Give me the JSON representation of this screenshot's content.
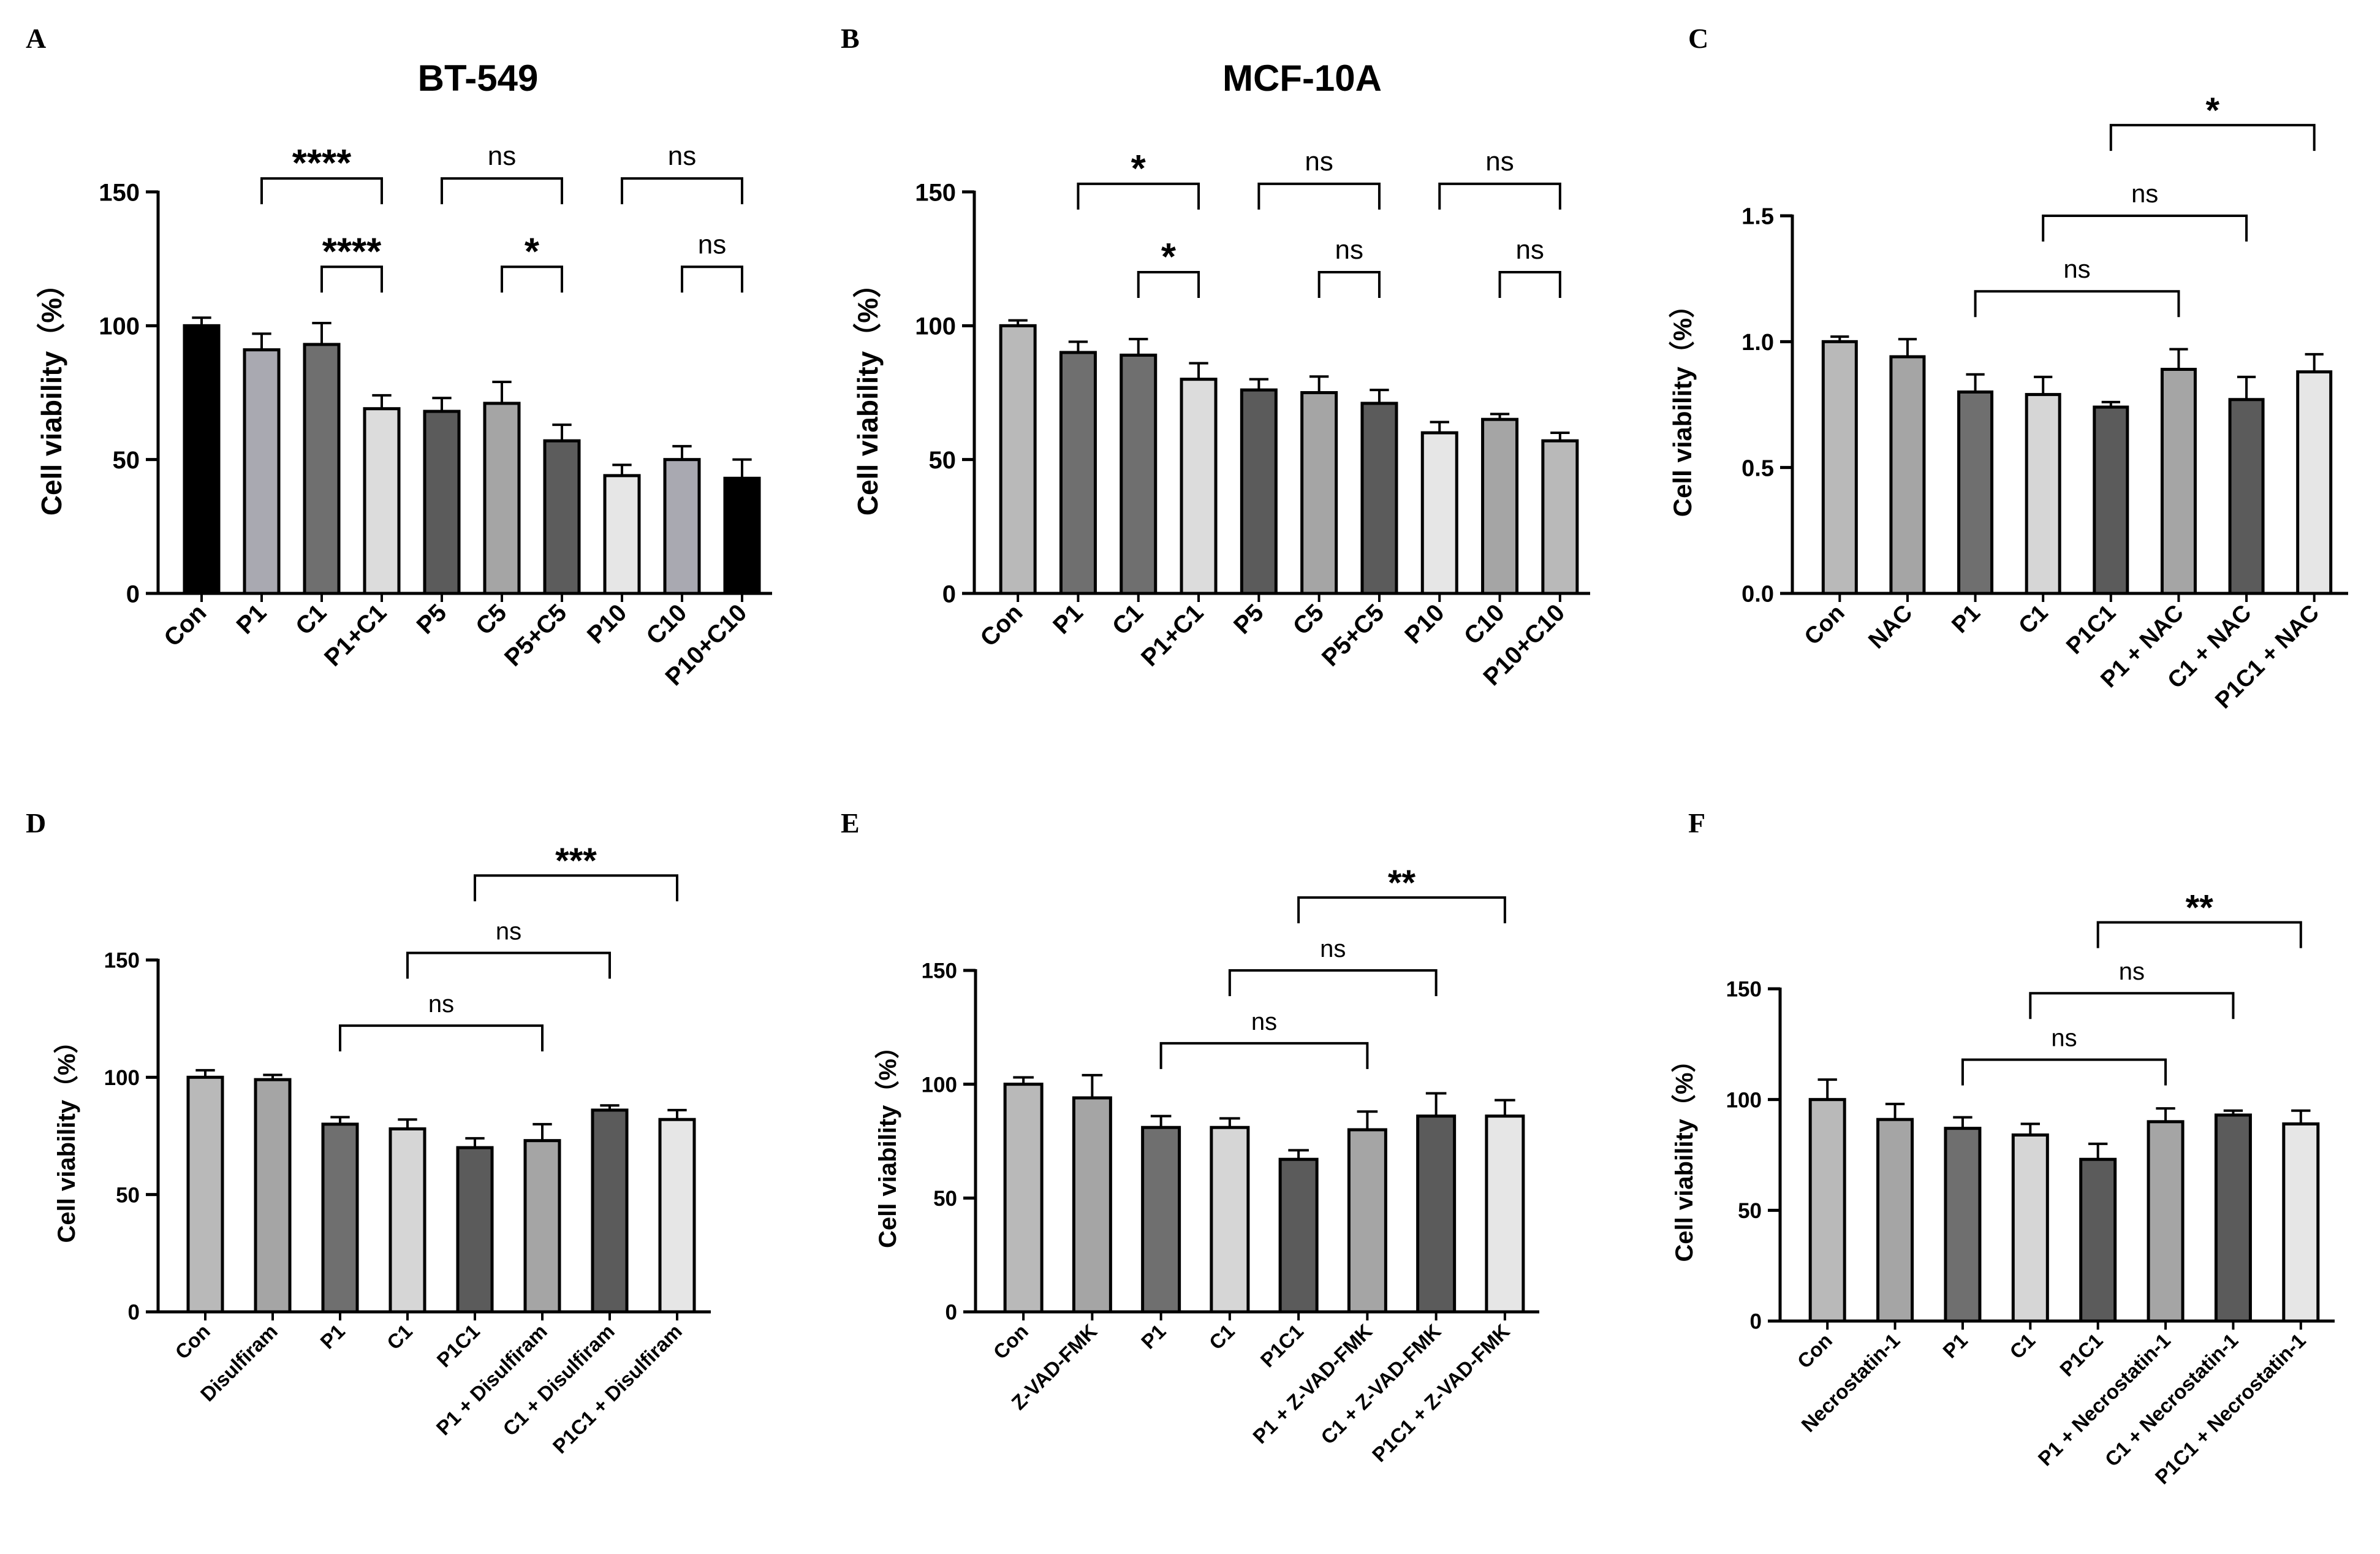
{
  "chart_data": [
    {
      "id": "A",
      "panel_letter": "A",
      "type": "bar",
      "title": "BT-549",
      "ylabel": "Cell viability（%）",
      "ylim": [
        0,
        150
      ],
      "yticks": [
        "0",
        "50",
        "100",
        "150"
      ],
      "categories": [
        "Con",
        "P1",
        "C1",
        "P1+C1",
        "P5",
        "C5",
        "P5+C5",
        "P10",
        "C10",
        "P10+C10"
      ],
      "values": [
        100,
        91,
        93,
        69,
        68,
        71,
        57,
        44,
        50,
        43
      ],
      "errors": [
        3,
        6,
        8,
        5,
        5,
        8,
        6,
        4,
        5,
        7
      ],
      "colors": [
        "#000000",
        "#a9a9b1",
        "#6f6f6f",
        "#dcdcdc",
        "#5b5b5b",
        "#a5a5a5",
        "#5c5c5c",
        "#e6e6e6",
        "#a9a9b1",
        "#000000"
      ],
      "comparisons": [
        {
          "from": 1,
          "to": 3,
          "label": "****",
          "level": 155
        },
        {
          "from": 2,
          "to": 3,
          "label": "****",
          "level": 122
        },
        {
          "from": 4,
          "to": 6,
          "label": "ns",
          "level": 155
        },
        {
          "from": 5,
          "to": 6,
          "label": "*",
          "level": 122
        },
        {
          "from": 7,
          "to": 9,
          "label": "ns",
          "level": 155
        },
        {
          "from": 8,
          "to": 9,
          "label": "ns",
          "level": 122
        }
      ]
    },
    {
      "id": "B",
      "panel_letter": "B",
      "type": "bar",
      "title": "MCF-10A",
      "ylabel": "Cell viability（%）",
      "ylim": [
        0,
        150
      ],
      "yticks": [
        "0",
        "50",
        "100",
        "150"
      ],
      "categories": [
        "Con",
        "P1",
        "C1",
        "P1+C1",
        "P5",
        "C5",
        "P5+C5",
        "P10",
        "C10",
        "P10+C10"
      ],
      "values": [
        100,
        90,
        89,
        80,
        76,
        75,
        71,
        60,
        65,
        57
      ],
      "errors": [
        2,
        4,
        6,
        6,
        4,
        6,
        5,
        4,
        2,
        3
      ],
      "colors": [
        "#b9b9b9",
        "#6f6f6f",
        "#6f6f6f",
        "#dcdcdc",
        "#5b5b5b",
        "#a5a5a5",
        "#5b5b5b",
        "#e6e6e6",
        "#a5a5a5",
        "#b9b9b9"
      ],
      "comparisons": [
        {
          "from": 1,
          "to": 3,
          "label": "*",
          "level": 153
        },
        {
          "from": 2,
          "to": 3,
          "label": "*",
          "level": 120
        },
        {
          "from": 4,
          "to": 6,
          "label": "ns",
          "level": 153
        },
        {
          "from": 5,
          "to": 6,
          "label": "ns",
          "level": 120
        },
        {
          "from": 7,
          "to": 9,
          "label": "ns",
          "level": 153
        },
        {
          "from": 8,
          "to": 9,
          "label": "ns",
          "level": 120
        }
      ]
    },
    {
      "id": "C",
      "panel_letter": "C",
      "type": "bar",
      "title": "",
      "ylabel": "Cell viability（%）",
      "ylim": [
        0,
        1.5
      ],
      "yticks": [
        "0.0",
        "0.5",
        "1.0",
        "1.5"
      ],
      "categories": [
        "Con",
        "NAC",
        "P1",
        "C1",
        "P1C1",
        "P1 + NAC",
        "C1 + NAC",
        "P1C1 + NAC"
      ],
      "values": [
        1.0,
        0.94,
        0.8,
        0.79,
        0.74,
        0.89,
        0.77,
        0.88
      ],
      "errors": [
        0.02,
        0.07,
        0.07,
        0.07,
        0.02,
        0.08,
        0.09,
        0.07
      ],
      "colors": [
        "#b9b9b9",
        "#a5a5a5",
        "#6f6f6f",
        "#d6d6d6",
        "#5b5b5b",
        "#a5a5a5",
        "#5b5b5b",
        "#e6e6e6"
      ],
      "comparisons": [
        {
          "from": 2,
          "to": 5,
          "label": "ns",
          "level": 1.2
        },
        {
          "from": 3,
          "to": 6,
          "label": "ns",
          "level": 1.5
        },
        {
          "from": 4,
          "to": 7,
          "label": "*",
          "level": 1.86
        }
      ]
    },
    {
      "id": "D",
      "panel_letter": "D",
      "type": "bar",
      "title": "",
      "ylabel": "Cell viability（%）",
      "ylim": [
        0,
        150
      ],
      "yticks": [
        "0",
        "50",
        "100",
        "150"
      ],
      "categories": [
        "Con",
        "Disulfiram",
        "P1",
        "C1",
        "P1C1",
        "P1 + Disulfiram",
        "C1 + Disulfiram",
        "P1C1 + Disulfiram"
      ],
      "values": [
        100,
        99,
        80,
        78,
        70,
        73,
        86,
        82
      ],
      "errors": [
        3,
        2,
        3,
        4,
        4,
        7,
        2,
        4
      ],
      "colors": [
        "#b9b9b9",
        "#a5a5a5",
        "#6f6f6f",
        "#d6d6d6",
        "#5b5b5b",
        "#a5a5a5",
        "#5b5b5b",
        "#e6e6e6"
      ],
      "comparisons": [
        {
          "from": 2,
          "to": 5,
          "label": "ns",
          "level": 122
        },
        {
          "from": 3,
          "to": 6,
          "label": "ns",
          "level": 153
        },
        {
          "from": 4,
          "to": 7,
          "label": "***",
          "level": 186
        }
      ]
    },
    {
      "id": "E",
      "panel_letter": "E",
      "type": "bar",
      "title": "",
      "ylabel": "Cell viability（%）",
      "ylim": [
        0,
        150
      ],
      "yticks": [
        "0",
        "50",
        "100",
        "150"
      ],
      "categories": [
        "Con",
        "Z-VAD-FMK",
        "P1",
        "C1",
        "P1C1",
        "P1 + Z-VAD-FMK",
        "C1 + Z-VAD-FMK",
        "P1C1 + Z-VAD-FMK"
      ],
      "values": [
        100,
        94,
        81,
        81,
        67,
        80,
        86,
        86
      ],
      "errors": [
        3,
        10,
        5,
        4,
        4,
        8,
        10,
        7
      ],
      "colors": [
        "#b9b9b9",
        "#a5a5a5",
        "#6f6f6f",
        "#d6d6d6",
        "#5b5b5b",
        "#a5a5a5",
        "#5b5b5b",
        "#e6e6e6"
      ],
      "comparisons": [
        {
          "from": 2,
          "to": 5,
          "label": "ns",
          "level": 118
        },
        {
          "from": 3,
          "to": 6,
          "label": "ns",
          "level": 150
        },
        {
          "from": 4,
          "to": 7,
          "label": "**",
          "level": 182
        }
      ]
    },
    {
      "id": "F",
      "panel_letter": "F",
      "type": "bar",
      "title": "",
      "ylabel": "Cell viability（%）",
      "ylim": [
        0,
        150
      ],
      "yticks": [
        "0",
        "50",
        "100",
        "150"
      ],
      "categories": [
        "Con",
        "Necrostatin-1",
        "P1",
        "C1",
        "P1C1",
        "P1 + Necrostatin-1",
        "C1 + Necrostatin-1",
        "P1C1 + Necrostatin-1"
      ],
      "values": [
        100,
        91,
        87,
        84,
        73,
        90,
        93,
        89
      ],
      "errors": [
        9,
        7,
        5,
        5,
        7,
        6,
        2,
        6
      ],
      "colors": [
        "#b9b9b9",
        "#a5a5a5",
        "#6f6f6f",
        "#d6d6d6",
        "#5b5b5b",
        "#a5a5a5",
        "#5b5b5b",
        "#e6e6e6"
      ],
      "comparisons": [
        {
          "from": 2,
          "to": 5,
          "label": "ns",
          "level": 118
        },
        {
          "from": 3,
          "to": 6,
          "label": "ns",
          "level": 148
        },
        {
          "from": 4,
          "to": 7,
          "label": "**",
          "level": 180
        }
      ]
    }
  ]
}
